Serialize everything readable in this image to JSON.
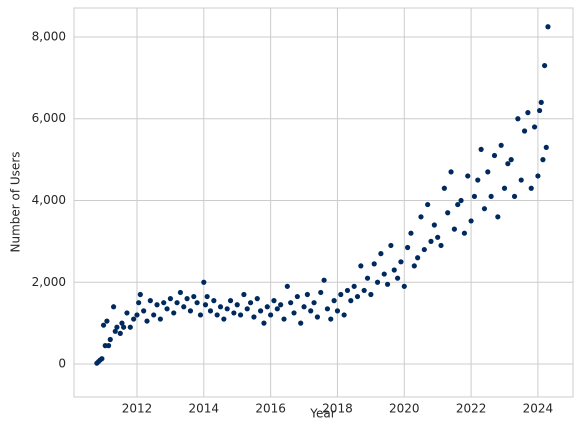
{
  "chart_data": {
    "type": "scatter",
    "x_label": "Year",
    "y_label": "Number of Users",
    "color": "#002a5e",
    "grid": true,
    "xlim": [
      2010.115,
      2025.05
    ],
    "ylim": [
      -807,
      8709
    ],
    "xticks": [
      2012,
      2014,
      2016,
      2018,
      2020,
      2022,
      2024
    ],
    "yticks": [
      0,
      {
        "value": 2000,
        "label": "2,000"
      },
      {
        "value": 4000,
        "label": "4,000"
      },
      {
        "value": 6000,
        "label": "6,000"
      },
      {
        "value": 8000,
        "label": "8,000"
      }
    ],
    "x": [
      2010.8,
      2010.85,
      2010.9,
      2010.95,
      2011.0,
      2011.05,
      2011.1,
      2011.15,
      2011.2,
      2011.3,
      2011.35,
      2011.4,
      2011.5,
      2011.55,
      2011.6,
      2011.7,
      2011.8,
      2011.9,
      2012.0,
      2012.05,
      2012.1,
      2012.2,
      2012.3,
      2012.4,
      2012.5,
      2012.6,
      2012.7,
      2012.8,
      2012.9,
      2013.0,
      2013.1,
      2013.2,
      2013.3,
      2013.4,
      2013.5,
      2013.6,
      2013.7,
      2013.8,
      2013.9,
      2014.0,
      2014.05,
      2014.1,
      2014.2,
      2014.3,
      2014.4,
      2014.5,
      2014.6,
      2014.7,
      2014.8,
      2014.9,
      2015.0,
      2015.1,
      2015.2,
      2015.3,
      2015.4,
      2015.5,
      2015.6,
      2015.7,
      2015.8,
      2015.9,
      2016.0,
      2016.1,
      2016.2,
      2016.3,
      2016.4,
      2016.5,
      2016.6,
      2016.7,
      2016.8,
      2016.9,
      2017.0,
      2017.1,
      2017.2,
      2017.3,
      2017.4,
      2017.5,
      2017.6,
      2017.7,
      2017.8,
      2017.9,
      2018.0,
      2018.1,
      2018.2,
      2018.3,
      2018.4,
      2018.5,
      2018.6,
      2018.7,
      2018.8,
      2018.9,
      2019.0,
      2019.1,
      2019.2,
      2019.3,
      2019.4,
      2019.5,
      2019.6,
      2019.7,
      2019.8,
      2019.9,
      2020.0,
      2020.1,
      2020.2,
      2020.3,
      2020.4,
      2020.5,
      2020.6,
      2020.7,
      2020.8,
      2020.9,
      2021.0,
      2021.1,
      2021.2,
      2021.3,
      2021.4,
      2021.5,
      2021.6,
      2021.7,
      2021.8,
      2021.9,
      2022.0,
      2022.1,
      2022.2,
      2022.3,
      2022.4,
      2022.5,
      2022.6,
      2022.7,
      2022.8,
      2022.9,
      2023.0,
      2023.1,
      2023.2,
      2023.3,
      2023.4,
      2023.5,
      2023.6,
      2023.7,
      2023.8,
      2023.9,
      2024.0,
      2024.05,
      2024.1,
      2024.15,
      2024.2,
      2024.25,
      2024.3
    ],
    "values": [
      20,
      60,
      100,
      130,
      950,
      450,
      1050,
      450,
      600,
      1400,
      800,
      900,
      750,
      1000,
      900,
      1250,
      900,
      1100,
      1200,
      1500,
      1700,
      1300,
      1050,
      1550,
      1200,
      1450,
      1100,
      1500,
      1350,
      1600,
      1250,
      1500,
      1750,
      1400,
      1600,
      1300,
      1650,
      1500,
      1200,
      2000,
      1450,
      1650,
      1300,
      1550,
      1200,
      1400,
      1100,
      1350,
      1550,
      1250,
      1450,
      1200,
      1700,
      1350,
      1500,
      1150,
      1600,
      1300,
      1000,
      1400,
      1200,
      1550,
      1350,
      1450,
      1100,
      1900,
      1500,
      1250,
      1650,
      1000,
      1400,
      1700,
      1300,
      1500,
      1150,
      1750,
      2050,
      1350,
      1100,
      1550,
      1300,
      1700,
      1200,
      1800,
      1550,
      1900,
      1650,
      2400,
      1800,
      2100,
      1700,
      2450,
      2000,
      2700,
      2200,
      1950,
      2900,
      2300,
      2100,
      2500,
      1900,
      2850,
      3200,
      2400,
      2600,
      3600,
      2800,
      3900,
      3000,
      3400,
      3100,
      2900,
      4300,
      3700,
      4700,
      3300,
      3900,
      4000,
      3200,
      4600,
      3500,
      4100,
      4500,
      5250,
      3800,
      4700,
      4100,
      5100,
      3600,
      5350,
      4300,
      4900,
      5000,
      4100,
      6000,
      4500,
      5700,
      6150,
      4300,
      5800,
      4600,
      6200,
      6400,
      5000,
      7300,
      5300,
      8250
    ]
  }
}
